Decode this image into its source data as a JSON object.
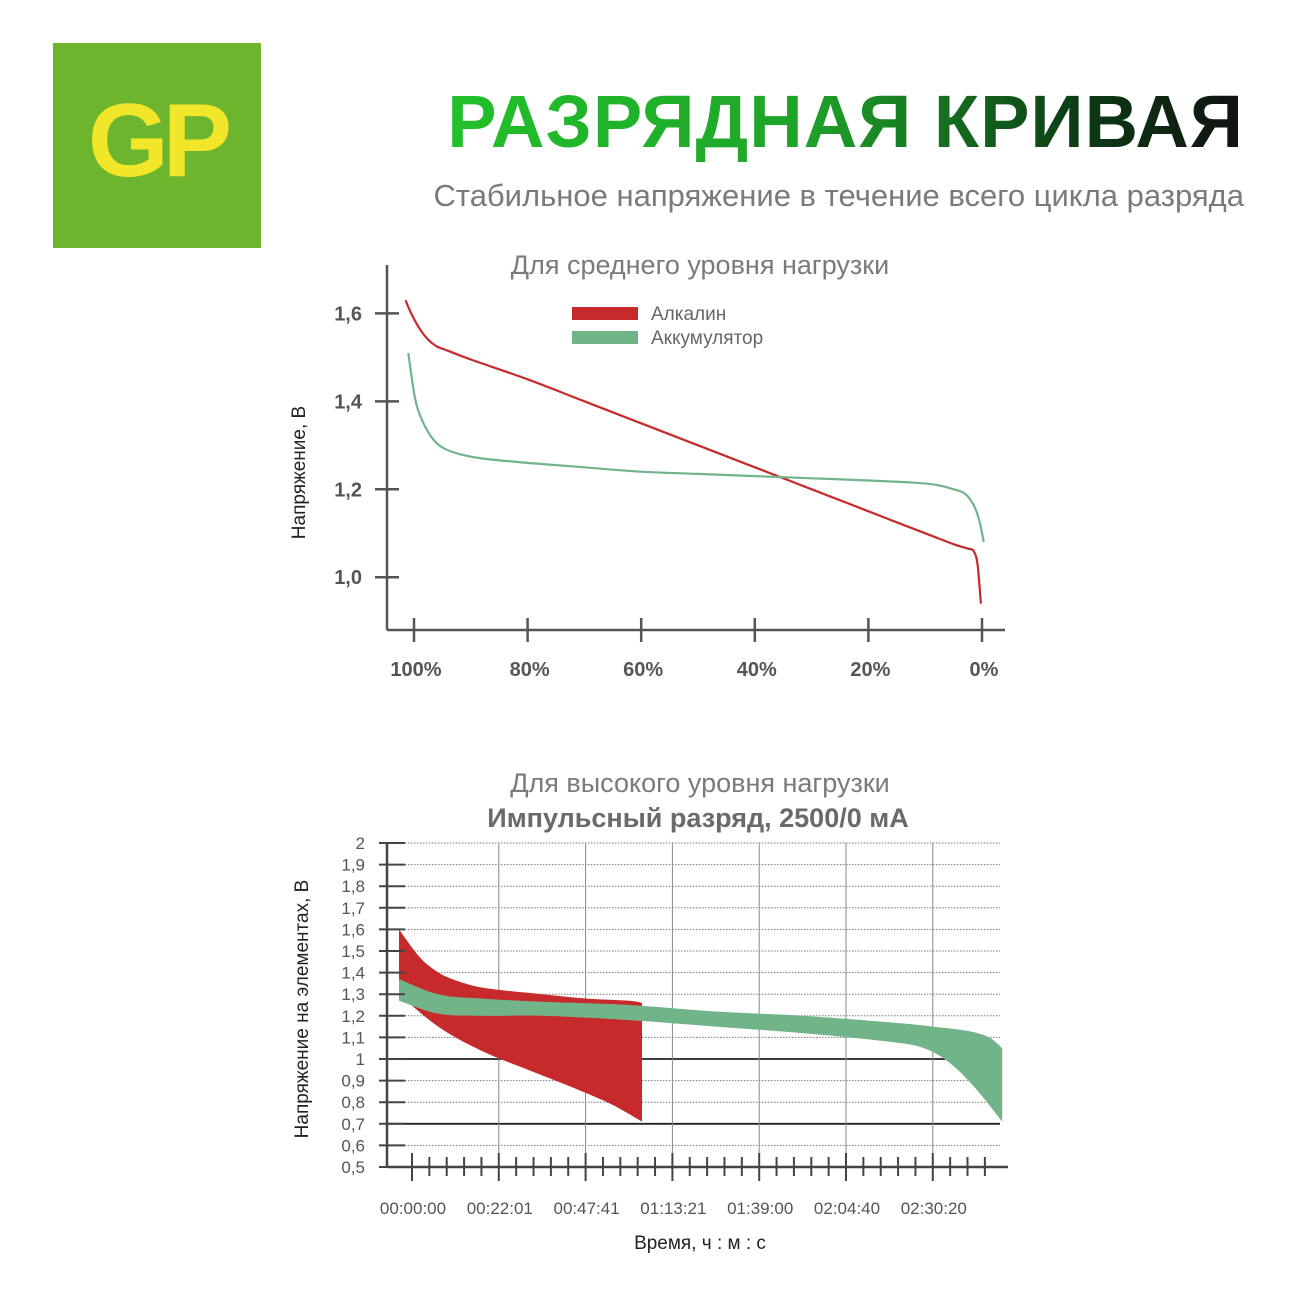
{
  "logo": {
    "text": "GP"
  },
  "header": {
    "title": "РАЗРЯДНАЯ КРИВАЯ",
    "subtitle": "Стабильное напряжение в течение всего цикла разряда"
  },
  "colors": {
    "alkaline": "#c62a2a",
    "rechargeable": "#72b48a",
    "logo_bg": "#6cb52d",
    "logo_text": "#f2e62a"
  },
  "chart_data": [
    {
      "type": "line",
      "title": "Для среднего уровня нагрузки",
      "ylabel": "Напряжение, В",
      "xlabel": "",
      "categories": [
        "100%",
        "80%",
        "60%",
        "40%",
        "20%",
        "0%"
      ],
      "ylim": [
        0.88,
        1.71
      ],
      "yticks": [
        1.0,
        1.2,
        1.4,
        1.6
      ],
      "ytick_labels": [
        "1,0",
        "1,2",
        "1,4",
        "1,6"
      ],
      "grid": false,
      "legend": "top-center",
      "series": [
        {
          "name": "Алкалин",
          "color": "#c62a2a",
          "points": [
            [
              101.5,
              1.63
            ],
            [
              100.5,
              1.6
            ],
            [
              99,
              1.565
            ],
            [
              97.5,
              1.54
            ],
            [
              96,
              1.525
            ],
            [
              94,
              1.515
            ],
            [
              90,
              1.495
            ],
            [
              80,
              1.45
            ],
            [
              70,
              1.4
            ],
            [
              60,
              1.35
            ],
            [
              50,
              1.3
            ],
            [
              40,
              1.25
            ],
            [
              30,
              1.2
            ],
            [
              20,
              1.15
            ],
            [
              10,
              1.1
            ],
            [
              5,
              1.075
            ],
            [
              2.5,
              1.065
            ],
            [
              1.5,
              1.06
            ],
            [
              0.8,
              1.03
            ],
            [
              0.2,
              0.94
            ]
          ]
        },
        {
          "name": "Аккумулятор",
          "color": "#72b48a",
          "points": [
            [
              101,
              1.51
            ],
            [
              100,
              1.42
            ],
            [
              99,
              1.37
            ],
            [
              97,
              1.32
            ],
            [
              95,
              1.295
            ],
            [
              92,
              1.28
            ],
            [
              88,
              1.27
            ],
            [
              80,
              1.26
            ],
            [
              70,
              1.25
            ],
            [
              60,
              1.24
            ],
            [
              50,
              1.235
            ],
            [
              40,
              1.23
            ],
            [
              30,
              1.225
            ],
            [
              20,
              1.22
            ],
            [
              12,
              1.215
            ],
            [
              8,
              1.21
            ],
            [
              5,
              1.2
            ],
            [
              3,
              1.19
            ],
            [
              1.5,
              1.165
            ],
            [
              0.5,
              1.13
            ],
            [
              -0.3,
              1.08
            ]
          ]
        }
      ]
    },
    {
      "type": "area",
      "title": "Для высокого уровня нагрузки",
      "subtitle": "Импульсный разряд, 2500/0 мА",
      "ylabel": "Напряжение на элементах, В",
      "xlabel": "Время, ч : м : с",
      "xtick_labels": [
        "00:00:00",
        "00:22:01",
        "00:47:41",
        "01:13:21",
        "01:39:00",
        "02:04:40",
        "02:30:20"
      ],
      "xlim": [
        0,
        6.8
      ],
      "ylim": [
        0.5,
        2.0
      ],
      "yticks": [
        0.5,
        0.6,
        0.7,
        0.8,
        0.9,
        1.0,
        1.1,
        1.2,
        1.3,
        1.4,
        1.5,
        1.6,
        1.7,
        1.8,
        1.9,
        2.0
      ],
      "ytick_labels": [
        "0,5",
        "0,6",
        "0,7",
        "0,8",
        "0,9",
        "1",
        "1,1",
        "1,2",
        "1,3",
        "1,4",
        "1,5",
        "1,6",
        "1,7",
        "1,8",
        "1,9",
        "2"
      ],
      "grid": true,
      "series": [
        {
          "name": "Алкалин",
          "color": "#c62a2a",
          "upper": [
            [
              -0.15,
              1.6
            ],
            [
              0.05,
              1.49
            ],
            [
              0.2,
              1.43
            ],
            [
              0.4,
              1.38
            ],
            [
              0.7,
              1.34
            ],
            [
              1.0,
              1.32
            ],
            [
              1.5,
              1.3
            ],
            [
              2.0,
              1.28
            ],
            [
              2.5,
              1.27
            ],
            [
              2.65,
              1.26
            ]
          ],
          "lower": [
            [
              -0.15,
              1.3
            ],
            [
              0.2,
              1.18
            ],
            [
              0.5,
              1.1
            ],
            [
              0.9,
              1.02
            ],
            [
              1.4,
              0.94
            ],
            [
              1.9,
              0.86
            ],
            [
              2.3,
              0.79
            ],
            [
              2.65,
              0.71
            ]
          ]
        },
        {
          "name": "Аккумулятор",
          "color": "#72b48a",
          "upper": [
            [
              -0.15,
              1.37
            ],
            [
              0.3,
              1.3
            ],
            [
              0.8,
              1.28
            ],
            [
              1.5,
              1.265
            ],
            [
              2.5,
              1.25
            ],
            [
              3.5,
              1.22
            ],
            [
              4.5,
              1.2
            ],
            [
              5.5,
              1.17
            ],
            [
              6.0,
              1.15
            ],
            [
              6.4,
              1.13
            ],
            [
              6.65,
              1.1
            ],
            [
              6.8,
              1.05
            ]
          ],
          "lower": [
            [
              -0.15,
              1.27
            ],
            [
              0.3,
              1.21
            ],
            [
              0.8,
              1.2
            ],
            [
              1.5,
              1.2
            ],
            [
              2.5,
              1.18
            ],
            [
              3.5,
              1.15
            ],
            [
              4.5,
              1.12
            ],
            [
              5.5,
              1.08
            ],
            [
              5.9,
              1.05
            ],
            [
              6.2,
              0.98
            ],
            [
              6.5,
              0.86
            ],
            [
              6.8,
              0.71
            ]
          ]
        }
      ]
    }
  ]
}
